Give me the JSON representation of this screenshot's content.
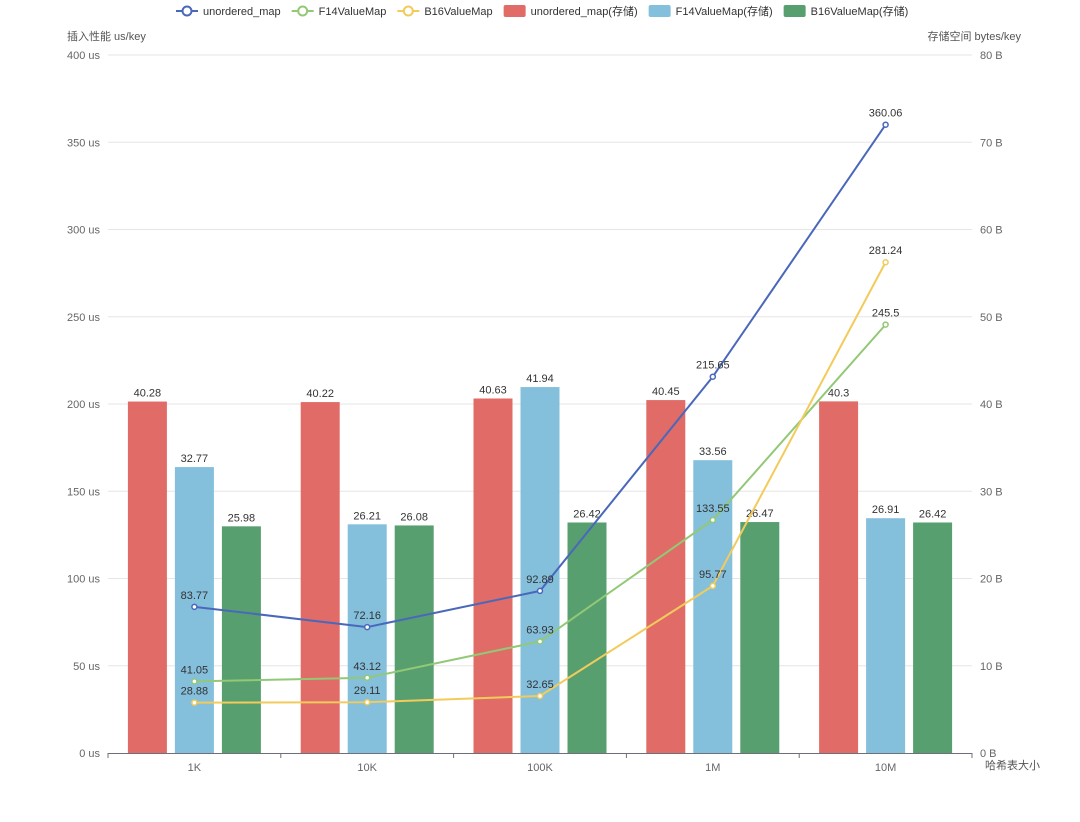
{
  "chart_data": {
    "type": "bar",
    "title": "",
    "categories": [
      "1K",
      "10K",
      "100K",
      "1M",
      "10M"
    ],
    "xlabel": "哈希表大小",
    "ylabel_left": "插入性能 us/key",
    "ylabel_right": "存储空间 bytes/key",
    "ylim_left": [
      0,
      400
    ],
    "ylim_right": [
      0,
      80
    ],
    "left_ticks": [
      "0 us",
      "50 us",
      "100 us",
      "150 us",
      "200 us",
      "250 us",
      "300 us",
      "350 us",
      "400 us"
    ],
    "right_ticks": [
      "0 B",
      "10 B",
      "20 B",
      "30 B",
      "40 B",
      "50 B",
      "60 B",
      "70 B",
      "80 B"
    ],
    "grid": true,
    "legend_position": "top",
    "bar_series": [
      {
        "name": "unordered_map(存储)",
        "color": "#e06b67",
        "values": [
          40.28,
          40.22,
          40.63,
          40.45,
          40.3
        ]
      },
      {
        "name": "F14ValueMap(存储)",
        "color": "#84bfdc",
        "values": [
          32.77,
          26.21,
          41.94,
          33.56,
          26.91
        ]
      },
      {
        "name": "B16ValueMap(存储)",
        "color": "#589f70",
        "values": [
          25.98,
          26.08,
          26.42,
          26.47,
          26.42
        ]
      }
    ],
    "line_series": [
      {
        "name": "unordered_map",
        "color": "#4a68bb",
        "values": [
          83.77,
          72.16,
          92.89,
          215.65,
          360.06
        ]
      },
      {
        "name": "F14ValueMap",
        "color": "#92c876",
        "values": [
          41.05,
          43.12,
          63.93,
          133.55,
          245.5
        ]
      },
      {
        "name": "B16ValueMap",
        "color": "#f2cb5b",
        "values": [
          28.88,
          29.11,
          32.65,
          95.77,
          281.24
        ]
      }
    ]
  }
}
